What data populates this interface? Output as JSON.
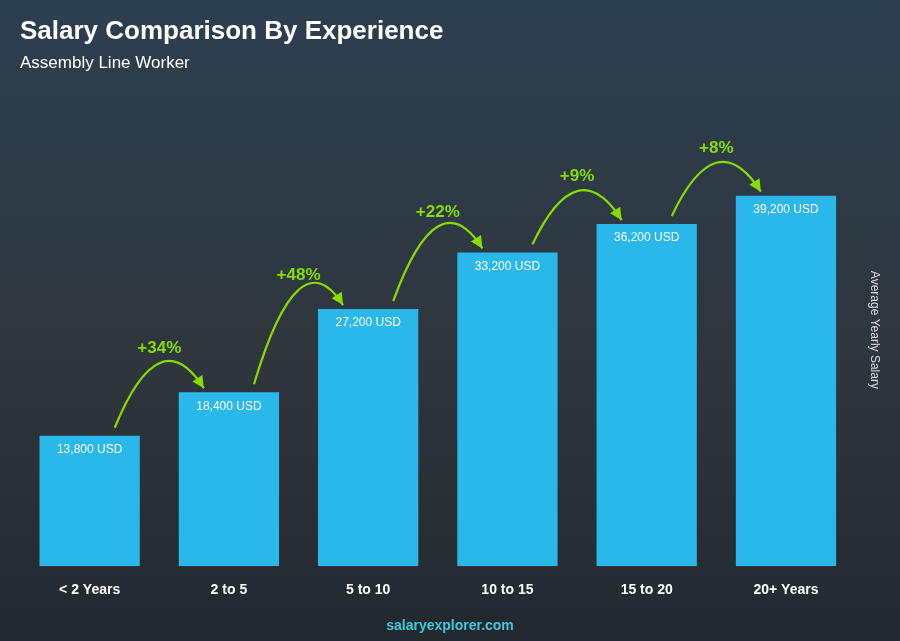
{
  "chart_data": {
    "type": "bar",
    "title": "Salary Comparison By Experience",
    "subtitle": "Assembly Line Worker",
    "ylabel": "Average Yearly Salary",
    "categories": [
      "< 2 Years",
      "2 to 5",
      "5 to 10",
      "10 to 15",
      "15 to 20",
      "20+ Years"
    ],
    "values": [
      13800,
      18400,
      27200,
      33200,
      36200,
      39200
    ],
    "value_labels": [
      "13,800 USD",
      "18,400 USD",
      "27,200 USD",
      "33,200 USD",
      "36,200 USD",
      "39,200 USD"
    ],
    "data_labels": true,
    "color": "#2ab8ea",
    "annotations": [
      "+34%",
      "+48%",
      "+22%",
      "+9%",
      "+8%"
    ],
    "watermark": "salaryexplorer.com",
    "ylim": [
      0,
      50000
    ],
    "grid": false,
    "tick_labels": "x"
  }
}
